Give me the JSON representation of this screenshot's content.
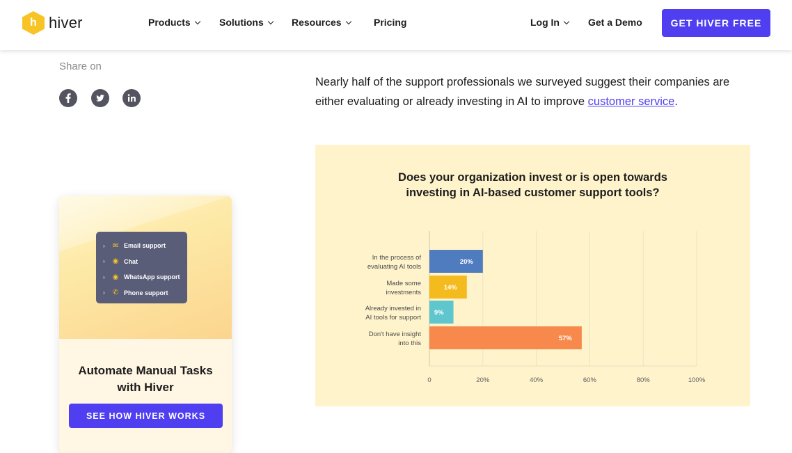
{
  "header": {
    "logo_text": "hiver",
    "logo_mark": "h",
    "nav": [
      {
        "label": "Products"
      },
      {
        "label": "Solutions"
      },
      {
        "label": "Resources"
      },
      {
        "label": "Pricing"
      }
    ],
    "login": "Log In",
    "demo": "Get a Demo",
    "cta": "GET HIVER FREE"
  },
  "share": {
    "label": "Share on",
    "icons": [
      "facebook-icon",
      "twitter-icon",
      "linkedin-icon"
    ]
  },
  "promo": {
    "menu": [
      {
        "label": "Email support",
        "icon": "inbox-icon"
      },
      {
        "label": "Chat",
        "icon": "chat-icon"
      },
      {
        "label": "WhatsApp support",
        "icon": "whatsapp-icon"
      },
      {
        "label": "Phone support",
        "icon": "phone-icon"
      }
    ],
    "title_line1": "Automate Manual Tasks",
    "title_line2": "with Hiver",
    "button": "SEE HOW HIVER WORKS"
  },
  "article": {
    "text": "Nearly half of the support professionals we surveyed suggest their companies are either evaluating or already investing in AI to improve ",
    "link": "customer service",
    "end": "."
  },
  "colors": {
    "accent": "#4f3ff0",
    "card_bg": "#fff3cc"
  },
  "chart_data": {
    "type": "bar",
    "orientation": "horizontal",
    "title": "Does your organization invest or is open towards investing in AI-based customer support tools?",
    "title_line1": "Does your organization invest or is open towards",
    "title_line2": "investing in AI-based customer support tools?",
    "categories": [
      [
        "In the process of",
        "evaluating AI tools"
      ],
      [
        "Made some",
        "investments"
      ],
      [
        "Already invested in",
        "AI tools for support"
      ],
      [
        "Don't have insight",
        "into this"
      ]
    ],
    "values": [
      20,
      14,
      9,
      57
    ],
    "value_labels": [
      "20%",
      "14%",
      "9%",
      "57%"
    ],
    "colors": [
      "#4f7bbf",
      "#f4bb1f",
      "#5ec6cc",
      "#f7894d"
    ],
    "xlim": [
      0,
      100
    ],
    "xticks": [
      0,
      20,
      40,
      60,
      80,
      100
    ],
    "xtick_labels": [
      "0",
      "20%",
      "40%",
      "60%",
      "80%",
      "100%"
    ],
    "grid": true
  }
}
